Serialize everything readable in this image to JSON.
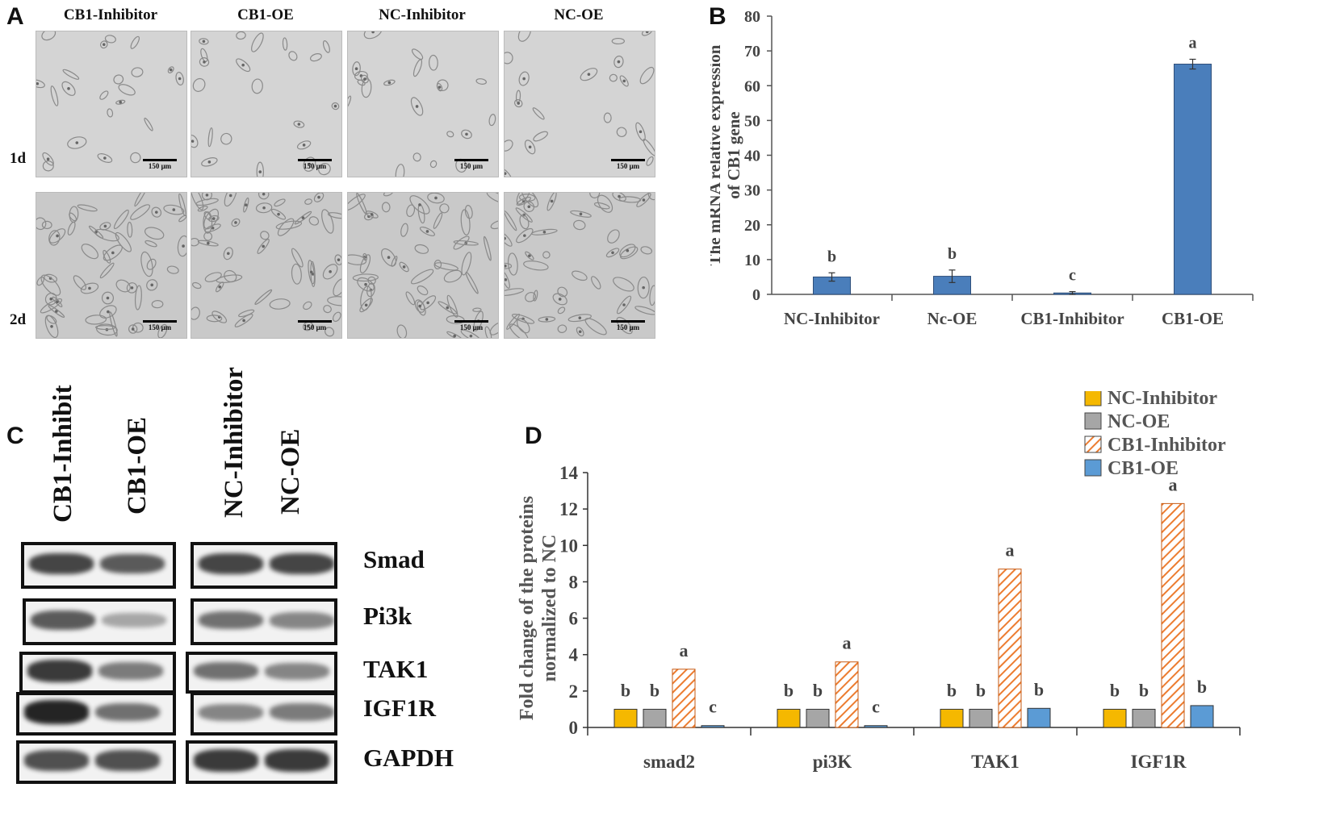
{
  "panelA": {
    "letter": "A",
    "columns": [
      "CB1-Inhibitor",
      "CB1-OE",
      "NC-Inhibitor",
      "NC-OE"
    ],
    "rows": [
      "1d",
      "2d"
    ],
    "scale_bars": [
      [
        "150 μm",
        "150 μm",
        "150 μm",
        "150 μm"
      ],
      [
        "150 μm",
        "150 μm",
        "150 μm",
        "150 μm"
      ]
    ]
  },
  "panelB": {
    "letter": "B"
  },
  "panelC": {
    "letter": "C",
    "lanes": [
      "CB1-Inhibitor",
      "CB1-OE",
      "NC-Inhibitor",
      "NC-OE"
    ],
    "proteins": [
      "Smad",
      "Pi3k",
      "TAK1",
      "IGF1R",
      "GAPDH"
    ],
    "band_intensity": [
      [
        0.8,
        0.7,
        0.8,
        0.8
      ],
      [
        0.7,
        0.35,
        0.6,
        0.5
      ],
      [
        0.85,
        0.55,
        0.6,
        0.5
      ],
      [
        0.95,
        0.6,
        0.5,
        0.55
      ],
      [
        0.75,
        0.75,
        0.85,
        0.85
      ]
    ],
    "colors": {
      "band": "#1a1a1a"
    }
  },
  "panelD": {
    "letter": "D"
  },
  "chart_data": [
    {
      "type": "bar",
      "panel": "B",
      "categories": [
        "NC-Inhibitor",
        "Nc-OE",
        "CB1-Inhibitor",
        "CB1-OE"
      ],
      "values": [
        5.0,
        5.2,
        0.4,
        66.2
      ],
      "errors": [
        1.2,
        1.8,
        0.4,
        1.4
      ],
      "significance": [
        "b",
        "b",
        "c",
        "a"
      ],
      "ylabel": "The mRNA relative expression of CB1 gene",
      "ylim": [
        0,
        80
      ],
      "yticks": [
        0,
        10,
        20,
        30,
        40,
        50,
        60,
        70,
        80
      ],
      "colors": {
        "bar": "#4a7ebb",
        "bar_edge": "#2f4f7a"
      }
    },
    {
      "type": "bar",
      "panel": "D",
      "categories": [
        "smad2",
        "pi3K",
        "TAK1",
        "IGF1R"
      ],
      "series": [
        {
          "name": "NC-Inhibitor",
          "values": [
            1,
            1,
            1,
            1
          ],
          "color": "#f5b800",
          "pattern": "solid"
        },
        {
          "name": "NC-OE",
          "values": [
            1,
            1,
            1,
            1
          ],
          "color": "#a6a6a6",
          "pattern": "solid"
        },
        {
          "name": "CB1-Inhibitor",
          "values": [
            3.2,
            3.6,
            8.7,
            12.3
          ],
          "color": "#ec7c30",
          "pattern": "hatch"
        },
        {
          "name": "CB1-OE",
          "values": [
            0.1,
            0.1,
            1.05,
            1.2
          ],
          "color": "#5b9bd5",
          "pattern": "solid"
        }
      ],
      "significance": [
        [
          "b",
          "b",
          "b",
          "b"
        ],
        [
          "b",
          "b",
          "b",
          "b"
        ],
        [
          "a",
          "a",
          "a",
          "a"
        ],
        [
          "c",
          "c",
          "b",
          "b"
        ]
      ],
      "ylabel": "Fold change of the proteins normalized to NC",
      "ylim": [
        0,
        14
      ],
      "yticks": [
        0,
        2,
        4,
        6,
        8,
        10,
        12,
        14
      ],
      "legend_position": "top-right"
    }
  ]
}
